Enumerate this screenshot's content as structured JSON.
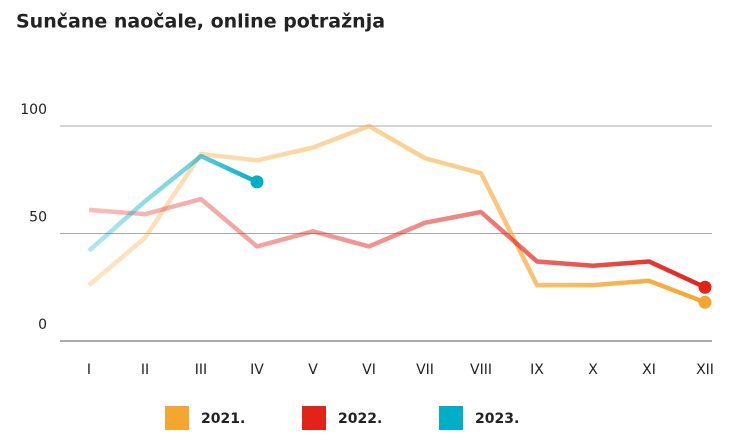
{
  "chart_data": {
    "type": "line",
    "title": "Sunčane naočale, online potražnja",
    "categories": [
      "I",
      "II",
      "III",
      "IV",
      "V",
      "VI",
      "VII",
      "VIII",
      "IX",
      "X",
      "XI",
      "XII"
    ],
    "series": [
      {
        "name": "2021.",
        "color": "#f5a630",
        "values": [
          26,
          48,
          87,
          84,
          90,
          100,
          85,
          78,
          26,
          26,
          28,
          18
        ]
      },
      {
        "name": "2022.",
        "color": "#e2231a",
        "values": [
          61,
          59,
          66,
          44,
          51,
          44,
          55,
          60,
          37,
          35,
          37,
          25
        ]
      },
      {
        "name": "2023.",
        "color": "#00aec7",
        "values": [
          42,
          65,
          86,
          74,
          null,
          null,
          null,
          null,
          null,
          null,
          null,
          null
        ]
      }
    ],
    "ylim": [
      0,
      100
    ],
    "yticks": [
      0,
      50,
      100
    ],
    "grid": true
  }
}
